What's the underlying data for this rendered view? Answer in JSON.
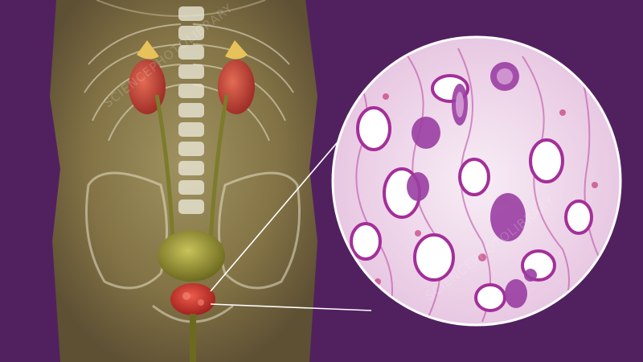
{
  "image": {
    "description_colors": {
      "background": "#51215f",
      "body": "#8a7d4a",
      "kidney": "#c2453a",
      "adrenal": "#e7c25a",
      "bladder": "#a6a036",
      "prostate": "#d2392f",
      "tissue_base": "#f4e6f2",
      "tissue_stain": "#a42f9a"
    },
    "watermark": {
      "text_1": "SCIENCEPHOTOLIBRARY",
      "text_2": "SCIENCEPHOTOLIBRARY"
    }
  }
}
